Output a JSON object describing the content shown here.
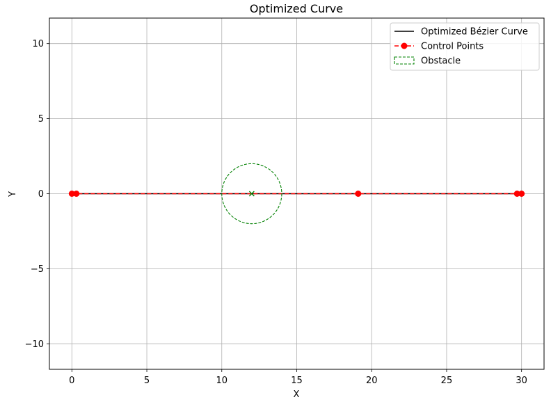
{
  "chart_data": {
    "type": "line",
    "title": "Optimized Curve",
    "xlabel": "X",
    "ylabel": "Y",
    "xlim": [
      -1.5,
      31.5
    ],
    "ylim": [
      -11.7,
      11.7
    ],
    "xticks": [
      0,
      5,
      10,
      15,
      20,
      25,
      30
    ],
    "xtick_labels": [
      "0",
      "5",
      "10",
      "15",
      "20",
      "25",
      "30"
    ],
    "yticks": [
      -10,
      -5,
      0,
      5,
      10
    ],
    "ytick_labels": [
      "−10",
      "−5",
      "0",
      "5",
      "10"
    ],
    "grid": true,
    "legend_position": "top-right",
    "series": [
      {
        "name": "Optimized Bézier Curve",
        "kind": "line",
        "color": "#000000",
        "x": [
          0,
          30
        ],
        "y": [
          0,
          0
        ]
      },
      {
        "name": "Control Points",
        "kind": "dashed-line-markers",
        "color": "#ff0000",
        "x": [
          0,
          0.3,
          19.1,
          29.7,
          30
        ],
        "y": [
          0,
          0,
          0,
          0,
          0
        ]
      },
      {
        "name": "Obstacle",
        "kind": "circle",
        "color": "#008000",
        "center": [
          12,
          0
        ],
        "radius": 2
      }
    ]
  }
}
